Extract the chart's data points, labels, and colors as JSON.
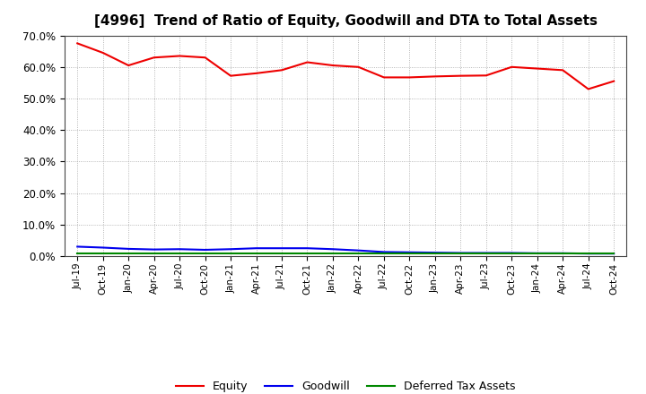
{
  "title": "[4996]  Trend of Ratio of Equity, Goodwill and DTA to Total Assets",
  "labels": [
    "Jul-19",
    "Oct-19",
    "Jan-20",
    "Apr-20",
    "Jul-20",
    "Oct-20",
    "Jan-21",
    "Apr-21",
    "Jul-21",
    "Oct-21",
    "Jan-22",
    "Apr-22",
    "Jul-22",
    "Oct-22",
    "Jan-23",
    "Apr-23",
    "Jul-23",
    "Oct-23",
    "Jan-24",
    "Apr-24",
    "Jul-24",
    "Oct-24"
  ],
  "equity": [
    0.675,
    0.645,
    0.605,
    0.63,
    0.635,
    0.63,
    0.572,
    0.58,
    0.59,
    0.615,
    0.605,
    0.6,
    0.567,
    0.567,
    0.57,
    0.572,
    0.573,
    0.6,
    0.595,
    0.59,
    0.53,
    0.555
  ],
  "goodwill": [
    0.03,
    0.027,
    0.023,
    0.021,
    0.022,
    0.02,
    0.022,
    0.025,
    0.025,
    0.025,
    0.022,
    0.018,
    0.013,
    0.012,
    0.011,
    0.01,
    0.01,
    0.01,
    0.009,
    0.009,
    0.008,
    0.008
  ],
  "dta": [
    0.008,
    0.008,
    0.008,
    0.008,
    0.008,
    0.008,
    0.008,
    0.008,
    0.008,
    0.008,
    0.008,
    0.008,
    0.008,
    0.008,
    0.008,
    0.008,
    0.008,
    0.008,
    0.008,
    0.008,
    0.008,
    0.008
  ],
  "equity_color": "#ee0000",
  "goodwill_color": "#0000ee",
  "dta_color": "#008800",
  "ylim": [
    0.0,
    0.7
  ],
  "yticks": [
    0.0,
    0.1,
    0.2,
    0.3,
    0.4,
    0.5,
    0.6,
    0.7
  ],
  "background_color": "#ffffff",
  "plot_bg_color": "#ffffff",
  "grid_color": "#999999",
  "title_fontsize": 11,
  "legend_labels": [
    "Equity",
    "Goodwill",
    "Deferred Tax Assets"
  ]
}
